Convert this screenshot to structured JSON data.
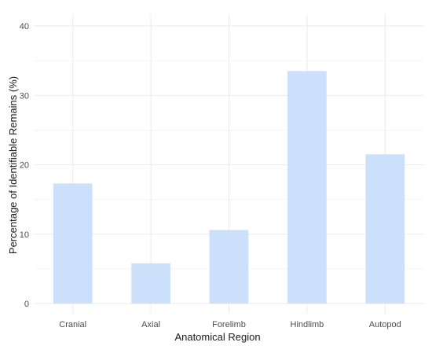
{
  "chart_data": {
    "type": "bar",
    "title": "",
    "xlabel": "Anatomical Region",
    "ylabel": "Percentage of Identifiable Remains (%)",
    "categories": [
      "Cranial",
      "Axial",
      "Forelimb",
      "Hindlimb",
      "Autopod"
    ],
    "values": [
      17.3,
      5.8,
      10.6,
      33.5,
      21.5
    ],
    "ylim": [
      0,
      40
    ],
    "yticks": [
      0,
      10,
      20,
      30,
      40
    ],
    "grid": true,
    "legend": "none",
    "bar_color": "#cce0fb",
    "grid_color": "#ebebeb"
  }
}
